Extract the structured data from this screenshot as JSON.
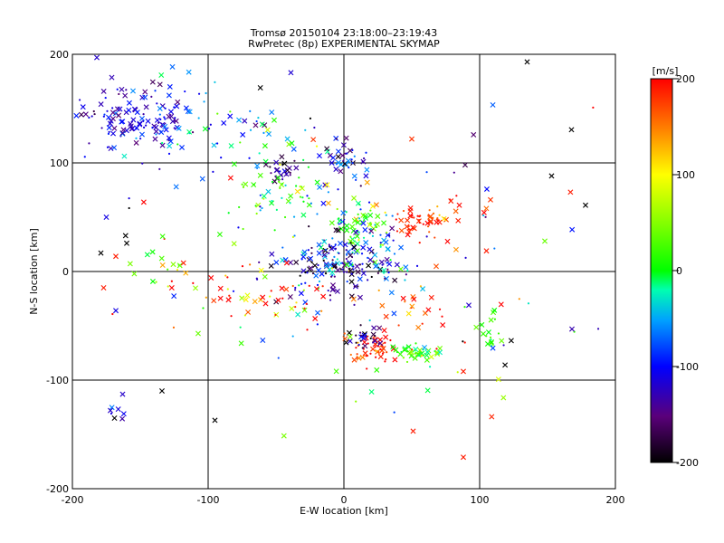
{
  "chart_data": {
    "type": "scatter",
    "title": "Tromsø 20150104 23:18:00–23:19:43",
    "subtitle": "RwPretec (8p) EXPERIMENTAL SKYMAP",
    "xlabel": "E-W location [km]",
    "ylabel": "N-S location [km]",
    "xlim": [
      -200,
      200
    ],
    "ylim": [
      -200,
      200
    ],
    "x_ticks": [
      -200,
      -100,
      0,
      100,
      200
    ],
    "y_ticks": [
      -200,
      -100,
      0,
      100,
      200
    ],
    "x_tick_labels": [
      "-200",
      "-100",
      "0",
      "100",
      "200"
    ],
    "y_tick_labels": [
      "-200",
      "-100",
      "0",
      "100",
      "200"
    ],
    "grid": true,
    "colorbar": {
      "label": "[m/s]",
      "range": [
        -200,
        200
      ],
      "ticks": [
        200,
        100,
        0,
        -100,
        -200
      ],
      "tick_labels": [
        "200",
        "100",
        "0",
        "-100",
        "-200"
      ],
      "placement": "right"
    },
    "markers": [
      "x (cross)",
      "· (dot)"
    ],
    "clusters": [
      {
        "x": -148,
        "y": 140,
        "sx": 22,
        "sy": 18,
        "n": 130,
        "v": -110,
        "vs": 25
      },
      {
        "x": -100,
        "y": 132,
        "sx": 40,
        "sy": 25,
        "n": 40,
        "v": -60,
        "vs": 50
      },
      {
        "x": -45,
        "y": 92,
        "sx": 6,
        "sy": 5,
        "n": 25,
        "v": -150,
        "vs": 30
      },
      {
        "x": -45,
        "y": 70,
        "sx": 15,
        "sy": 12,
        "n": 50,
        "v": -10,
        "vs": 50
      },
      {
        "x": -50,
        "y": 120,
        "sx": 25,
        "sy": 15,
        "n": 25,
        "v": -40,
        "vs": 50
      },
      {
        "x": 0,
        "y": 100,
        "sx": 10,
        "sy": 15,
        "n": 40,
        "v": -120,
        "vs": 50
      },
      {
        "x": 10,
        "y": 40,
        "sx": 12,
        "sy": 15,
        "n": 80,
        "v": 0,
        "vs": 60
      },
      {
        "x": 57,
        "y": 45,
        "sx": 8,
        "sy": 6,
        "n": 40,
        "v": 190,
        "vs": 15
      },
      {
        "x": 80,
        "y": 50,
        "sx": 15,
        "sy": 15,
        "n": 20,
        "v": 170,
        "vs": 30
      },
      {
        "x": 5,
        "y": 10,
        "sx": 20,
        "sy": 15,
        "n": 140,
        "v": -110,
        "vs": 60
      },
      {
        "x": -20,
        "y": 0,
        "sx": 20,
        "sy": 15,
        "n": 50,
        "v": -150,
        "vs": 50
      },
      {
        "x": -55,
        "y": -20,
        "sx": 30,
        "sy": 15,
        "n": 50,
        "v": 160,
        "vs": 70
      },
      {
        "x": -125,
        "y": 0,
        "sx": 20,
        "sy": 15,
        "n": 20,
        "v": 80,
        "vs": 100
      },
      {
        "x": 22,
        "y": -70,
        "sx": 10,
        "sy": 8,
        "n": 55,
        "v": 190,
        "vs": 40
      },
      {
        "x": 15,
        "y": -62,
        "sx": 6,
        "sy": 5,
        "n": 25,
        "v": -170,
        "vs": 40
      },
      {
        "x": 55,
        "y": -75,
        "sx": 12,
        "sy": 5,
        "n": 45,
        "v": 20,
        "vs": 30
      },
      {
        "x": 55,
        "y": -35,
        "sx": 15,
        "sy": 15,
        "n": 20,
        "v": 180,
        "vs": 30
      },
      {
        "x": 107,
        "y": -55,
        "sx": 5,
        "sy": 8,
        "n": 15,
        "v": 20,
        "vs": 15
      },
      {
        "x": -170,
        "y": -130,
        "sx": 5,
        "sy": 5,
        "n": 5,
        "v": -120,
        "vs": 30
      },
      {
        "x": 0,
        "y": 0,
        "sx": 110,
        "sy": 100,
        "n": 100,
        "v": 0,
        "vs": 130
      }
    ],
    "points": [
      {
        "x": -182,
        "y": 197,
        "v": -120,
        "m": "x"
      },
      {
        "x": 135,
        "y": 193,
        "v": -200,
        "m": "x"
      },
      {
        "x": 153,
        "y": 88,
        "v": -200,
        "m": "x"
      },
      {
        "x": 178,
        "y": 61,
        "v": -200,
        "m": "x"
      },
      {
        "x": 108,
        "y": 66,
        "v": 180,
        "m": "x"
      },
      {
        "x": 105,
        "y": 19,
        "v": 190,
        "m": "x"
      },
      {
        "x": 148,
        "y": 28,
        "v": 40,
        "m": "x"
      },
      {
        "x": 50,
        "y": 122,
        "v": 180,
        "m": "x"
      },
      {
        "x": -177,
        "y": -15,
        "v": 190,
        "m": "x"
      },
      {
        "x": -172,
        "y": -128,
        "v": -120,
        "m": "x"
      },
      {
        "x": -169,
        "y": -135,
        "v": -200,
        "m": "x"
      },
      {
        "x": -163,
        "y": -113,
        "v": -120,
        "m": "x"
      },
      {
        "x": -134,
        "y": -110,
        "v": -200,
        "m": "x"
      },
      {
        "x": -95,
        "y": -137,
        "v": -200,
        "m": "x"
      },
      {
        "x": 51,
        "y": -147,
        "v": 190,
        "m": "x"
      },
      {
        "x": 88,
        "y": -171,
        "v": 190,
        "m": "x"
      },
      {
        "x": 92,
        "y": -31,
        "v": -120,
        "m": "x"
      },
      {
        "x": 168,
        "y": -53,
        "v": -130,
        "m": "x"
      },
      {
        "x": -160,
        "y": 26,
        "v": -200,
        "m": "x"
      },
      {
        "x": -179,
        "y": 17,
        "v": -200,
        "m": "x"
      },
      {
        "x": -168,
        "y": 14,
        "v": 190,
        "m": "x"
      },
      {
        "x": -175,
        "y": 50,
        "v": -110,
        "m": "x"
      },
      {
        "x": -168,
        "y": -36,
        "v": -110,
        "m": "x"
      },
      {
        "x": 88,
        "y": -92,
        "v": 190,
        "m": "x"
      }
    ]
  }
}
